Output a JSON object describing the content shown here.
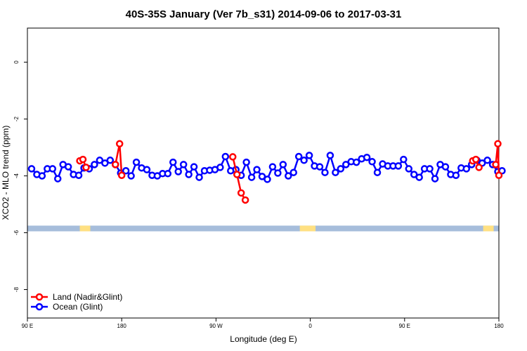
{
  "chart_data": {
    "type": "line",
    "title": "40S-35S January (Ver 7b_s31)   2014-09-06 to 2017-03-31",
    "xlabel": "Longitude (deg E)",
    "ylabel": "XCO2 - MLO trend (ppm)",
    "x_ticks": [
      {
        "value": 90,
        "label": "90 E"
      },
      {
        "value": 180,
        "label": "180"
      },
      {
        "value": 270,
        "label": "90 W"
      },
      {
        "value": 360,
        "label": "0"
      },
      {
        "value": 450,
        "label": "90 E"
      },
      {
        "value": 540,
        "label": "180"
      }
    ],
    "y_ticks": [
      {
        "value": 0,
        "label": "0"
      },
      {
        "value": -2,
        "label": "-2"
      },
      {
        "value": -4,
        "label": "-4"
      },
      {
        "value": -6,
        "label": "-6"
      },
      {
        "value": -8,
        "label": "-8"
      }
    ],
    "xlim": [
      90,
      540
    ],
    "ylim": [
      -9.0,
      1.2
    ],
    "grid": false,
    "legend_position": "bottom-left",
    "land_band": {
      "y_range": [
        -5.95,
        -5.75
      ],
      "ocean_color": "#a6bddb",
      "land_color": "#ffe082",
      "land_x_ranges": [
        [
          140,
          150
        ],
        [
          350,
          365
        ],
        [
          525,
          535
        ]
      ]
    },
    "series": [
      {
        "name": "Land (Nadir&Glint)",
        "color": "#ff0000",
        "segments": [
          {
            "x": [
              140,
              143,
              146
            ],
            "y": [
              -3.47,
              -3.42,
              -3.7
            ]
          },
          {
            "x": [
              174,
              178,
              180
            ],
            "y": [
              -3.6,
              -2.87,
              -3.98
            ]
          },
          {
            "x": [
              286,
              290,
              294,
              298
            ],
            "y": [
              -3.33,
              -3.95,
              -4.6,
              -4.85
            ]
          },
          {
            "x": [
              515,
              518,
              521
            ],
            "y": [
              -3.47,
              -3.42,
              -3.7
            ]
          },
          {
            "x": [
              537,
              539,
              540
            ],
            "y": [
              -3.6,
              -2.87,
              -3.98
            ]
          }
        ]
      },
      {
        "name": "Ocean (Glint)",
        "color": "#0000ff",
        "x": [
          94,
          99,
          104,
          109,
          114,
          119,
          124,
          129,
          134,
          139,
          144,
          149,
          154,
          159,
          164,
          169,
          174,
          179,
          184,
          189,
          194,
          199,
          204,
          209,
          214,
          219,
          224,
          229,
          234,
          239,
          244,
          249,
          254,
          259,
          264,
          269,
          274,
          279,
          284,
          289,
          294,
          299,
          304,
          309,
          314,
          319,
          324,
          329,
          334,
          339,
          344,
          349,
          354,
          359,
          364,
          369,
          374,
          379,
          384,
          389,
          394,
          399,
          404,
          409,
          414,
          419,
          424,
          429,
          434,
          439,
          444,
          449,
          454,
          459,
          464,
          469,
          474,
          479,
          484,
          489,
          494,
          499,
          504,
          509,
          514,
          519,
          524,
          529,
          534,
          539,
          543
        ],
        "y": [
          -3.75,
          -3.95,
          -4.0,
          -3.75,
          -3.75,
          -4.1,
          -3.6,
          -3.68,
          -3.95,
          -3.98,
          -3.72,
          -3.75,
          -3.6,
          -3.45,
          -3.55,
          -3.45,
          -3.6,
          -3.9,
          -3.82,
          -4.0,
          -3.52,
          -3.72,
          -3.78,
          -3.98,
          -4.0,
          -3.92,
          -3.92,
          -3.52,
          -3.85,
          -3.6,
          -3.95,
          -3.68,
          -4.05,
          -3.82,
          -3.8,
          -3.78,
          -3.7,
          -3.32,
          -3.82,
          -3.78,
          -3.98,
          -3.52,
          -4.05,
          -3.78,
          -4.02,
          -4.12,
          -3.68,
          -3.9,
          -3.6,
          -4.0,
          -3.88,
          -3.32,
          -3.45,
          -3.28,
          -3.65,
          -3.68,
          -3.88,
          -3.28,
          -3.88,
          -3.75,
          -3.6,
          -3.5,
          -3.52,
          -3.4,
          -3.35,
          -3.5,
          -3.88,
          -3.58,
          -3.65,
          -3.65,
          -3.65,
          -3.42,
          -3.75,
          -3.95,
          -4.05,
          -3.75,
          -3.75,
          -4.1,
          -3.6,
          -3.68,
          -3.95,
          -3.98,
          -3.72,
          -3.75,
          -3.6,
          -3.45,
          -3.55,
          -3.45,
          -3.6,
          -3.85,
          -3.82
        ]
      }
    ]
  }
}
